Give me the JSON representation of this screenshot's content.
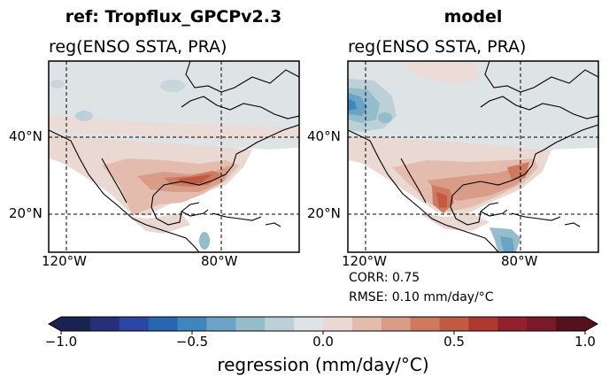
{
  "panels": [
    {
      "title": "ref: Tropflux_GPCPv2.3",
      "subtitle": "reg(ENSO SSTA, PRA)",
      "y_ticks": [
        "40°N",
        "20°N"
      ],
      "x_ticks": [
        "120°W",
        "80°W"
      ]
    },
    {
      "title": "model",
      "subtitle": "reg(ENSO SSTA, PRA)",
      "y_ticks": [
        "40°N",
        "20°N"
      ],
      "x_ticks": [
        "120°W",
        "80°W"
      ],
      "stats": {
        "corr": "CORR: 0.75",
        "rmse": "RMSE: 0.10 mm/day/$^\\circ$C"
      }
    }
  ],
  "colorbar": {
    "label": "regression (mm/day/$^\\circ$C)",
    "ticks": [
      "−1.0",
      "−0.5",
      "0.0",
      "0.5",
      "1.0"
    ],
    "tick_values": [
      -1.0,
      -0.5,
      0.0,
      0.5,
      1.0
    ],
    "range": [
      -1.0,
      1.0
    ],
    "extend": "both",
    "colors": [
      "#1a2350",
      "#252f7a",
      "#2b46a5",
      "#2866b0",
      "#3f86be",
      "#6aa3c4",
      "#94bccb",
      "#bcd0d8",
      "#dee3e6",
      "#ead9d3",
      "#e3bcae",
      "#d99c86",
      "#cd7a61",
      "#c25a43",
      "#ad3931",
      "#93202d",
      "#781a27",
      "#54121c"
    ]
  }
}
